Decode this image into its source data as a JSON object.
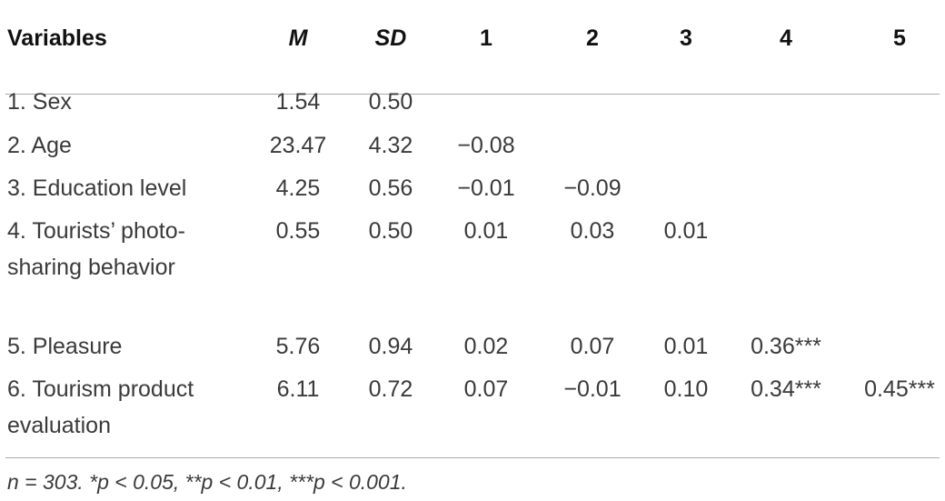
{
  "table": {
    "header": [
      "Variables",
      "M",
      "SD",
      "1",
      "2",
      "3",
      "4",
      "5"
    ],
    "rows": [
      {
        "label": "1. Sex",
        "M": "1.54",
        "SD": "0.50",
        "correlations": []
      },
      {
        "label": "2. Age",
        "M": "23.47",
        "SD": "4.32",
        "correlations": [
          "−0.08"
        ]
      },
      {
        "label": "3. Education level",
        "M": "4.25",
        "SD": "0.56",
        "correlations": [
          "−0.01",
          "−0.09"
        ]
      },
      {
        "label": "4. Tourists’ photo-sharing behavior",
        "M": "0.55",
        "SD": "0.50",
        "correlations": [
          "0.01",
          "0.03",
          "0.01"
        ]
      },
      {
        "label": "5. Pleasure",
        "M": "5.76",
        "SD": "0.94",
        "correlations": [
          "0.02",
          "0.07",
          "0.01",
          "0.36***"
        ]
      },
      {
        "label": "6. Tourism product evaluation",
        "M": "6.11",
        "SD": "0.72",
        "correlations": [
          "0.07",
          "−0.01",
          "0.10",
          "0.34***",
          "0.45***"
        ]
      }
    ],
    "note": "n = 303. *p < 0.05, **p < 0.01, ***p < 0.001."
  }
}
